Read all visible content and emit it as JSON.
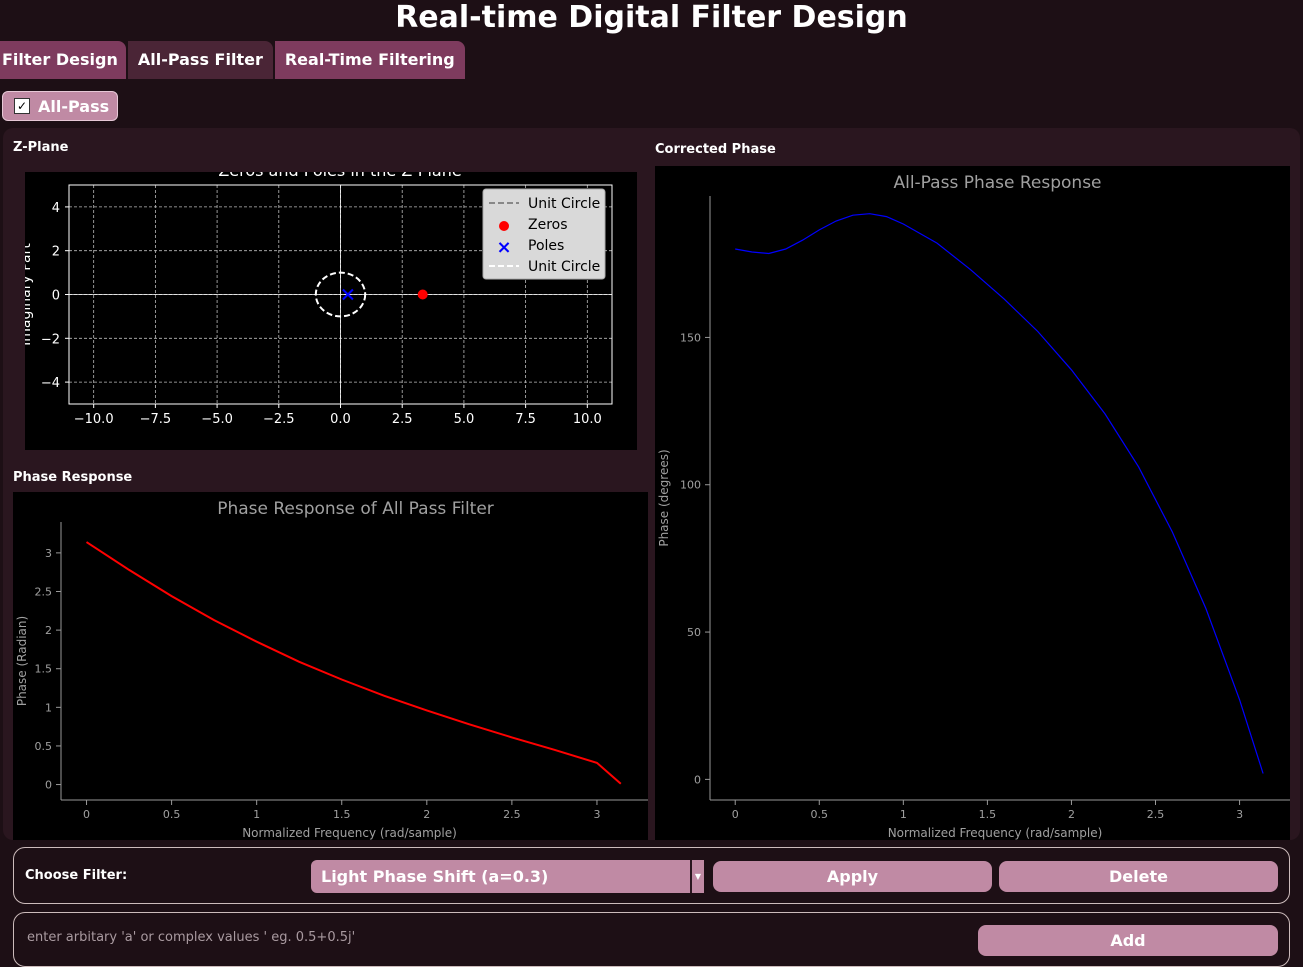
{
  "app": {
    "title": "Real-time Digital Filter Design"
  },
  "tabs": [
    {
      "label": "Filter Design"
    },
    {
      "label": "All-Pass Filter"
    },
    {
      "label": "Real-Time Filtering"
    }
  ],
  "allpass_toggle": {
    "label": "All-Pass",
    "checked": true
  },
  "sections": {
    "zplane": "Z-Plane",
    "phase": "Phase Response",
    "corrected": "Corrected Phase"
  },
  "controls": {
    "choose_label": "Choose Filter:",
    "selected_filter": "Light Phase Shift (a=0.3)",
    "apply_label": "Apply",
    "delete_label": "Delete",
    "custom_placeholder": "enter arbitary 'a' or complex values ' eg. 0.5+0.5j'",
    "add_label": "Add"
  },
  "colors": {
    "accent": "#c08aa4",
    "tab": "#7e3b5e",
    "zero_marker": "#ff0000",
    "pole_marker": "#0000ff",
    "phase_curve": "#ff0000",
    "corrected_curve": "#0000ff"
  },
  "chart_data": [
    {
      "type": "scatter",
      "title": "Zeros and Poles in the Z-Plane",
      "xlabel": "",
      "ylabel": "Imaginary Part",
      "xlim": [
        -11,
        11
      ],
      "ylim": [
        -5,
        5
      ],
      "xticks": [
        -10.0,
        -7.5,
        -5.0,
        -2.5,
        0.0,
        2.5,
        5.0,
        7.5,
        10.0
      ],
      "yticks": [
        -4,
        -2,
        0,
        2,
        4
      ],
      "grid": true,
      "legend": [
        "Unit Circle",
        "Zeros",
        "Poles",
        "Unit Circle"
      ],
      "legend_placement": "top-right",
      "zeros": [
        {
          "x": 3.33,
          "y": 0
        }
      ],
      "poles": [
        {
          "x": 0.3,
          "y": 0
        }
      ],
      "unit_circle_radius": 1
    },
    {
      "type": "line",
      "title": "Phase Response of All Pass Filter",
      "xlabel": "Normalized Frequency (rad/sample)",
      "ylabel": "Phase (Radian)",
      "xlim": [
        -0.15,
        3.3
      ],
      "ylim": [
        -0.2,
        3.4
      ],
      "xticks": [
        0,
        0.5,
        1,
        1.5,
        2,
        2.5,
        3
      ],
      "yticks": [
        0,
        0.5,
        1,
        1.5,
        2,
        2.5,
        3
      ],
      "series": [
        {
          "x": [
            0,
            0.25,
            0.5,
            0.75,
            1.0,
            1.25,
            1.5,
            1.75,
            2.0,
            2.25,
            2.5,
            2.75,
            3.0,
            3.14
          ],
          "y": [
            3.14,
            2.78,
            2.44,
            2.13,
            1.85,
            1.59,
            1.36,
            1.15,
            0.96,
            0.78,
            0.61,
            0.45,
            0.28,
            0.01
          ]
        }
      ]
    },
    {
      "type": "line",
      "title": "All-Pass Phase Response",
      "xlabel": "Normalized Frequency (rad/sample)",
      "ylabel": "Phase (degrees)",
      "xlim": [
        -0.15,
        3.3
      ],
      "ylim": [
        -7,
        198
      ],
      "xticks": [
        0,
        0.5,
        1,
        1.5,
        2,
        2.5,
        3
      ],
      "yticks": [
        0,
        50,
        100,
        150
      ],
      "series": [
        {
          "x": [
            0,
            0.1,
            0.2,
            0.3,
            0.4,
            0.5,
            0.6,
            0.7,
            0.8,
            0.9,
            1.0,
            1.2,
            1.4,
            1.6,
            1.8,
            2.0,
            2.2,
            2.4,
            2.6,
            2.8,
            3.0,
            3.14
          ],
          "y": [
            180,
            179,
            178.5,
            180,
            183,
            186.5,
            189.5,
            191.5,
            192,
            191,
            188.5,
            182,
            173,
            163,
            152,
            139,
            124,
            106,
            84,
            58,
            27,
            2
          ]
        }
      ]
    }
  ]
}
